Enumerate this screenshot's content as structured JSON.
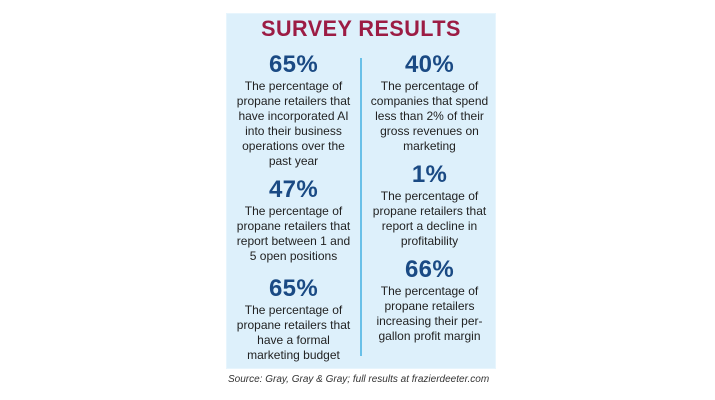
{
  "title": "SURVEY RESULTS",
  "left_stats": [
    {
      "percent": "65%",
      "description": "The percentage of propane retailers that have incorporated AI into their business operations over the past year"
    },
    {
      "percent": "47%",
      "description": "The percentage of propane retailers that report between 1 and 5 open positions"
    },
    {
      "percent": "65%",
      "description": "The percentage of propane retailers that have a formal marketing budget"
    }
  ],
  "right_stats": [
    {
      "percent": "40%",
      "description": "The percentage of companies that spend less than 2% of their gross revenues on marketing"
    },
    {
      "percent": "1%",
      "description": "The percentage of propane retailers that report a decline in profitability"
    },
    {
      "percent": "66%",
      "description": "The percentage of propane retailers increasing their per-gallon profit margin"
    }
  ],
  "source": "Source: Gray, Gray & Gray; full results at frazierdeeter.com",
  "colors": {
    "title": "#9c1c44",
    "percent": "#1a4a84",
    "panel_background": "#ddf0fb",
    "divider": "#69c0e8"
  }
}
